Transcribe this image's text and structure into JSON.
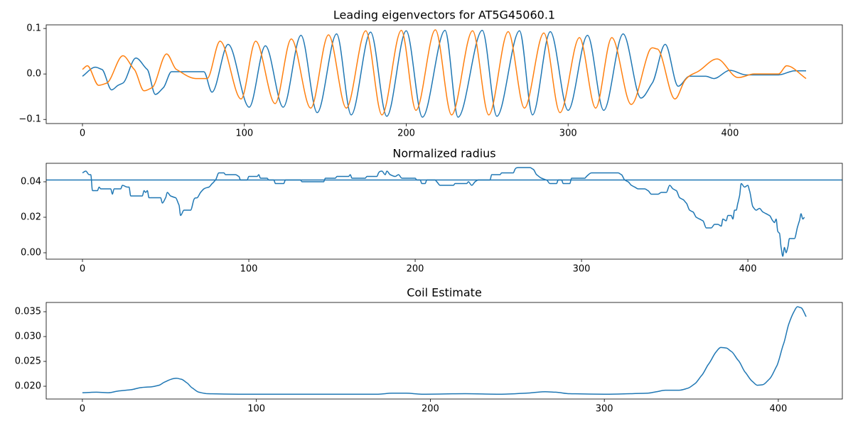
{
  "chart_data": [
    {
      "type": "line",
      "title": "Leading eigenvectors for AT5G45060.1",
      "xlim": [
        -22.4,
        469.4
      ],
      "ylim": [
        -0.109,
        0.108
      ],
      "xticks": [
        0,
        100,
        200,
        300,
        400
      ],
      "yticks": [
        {
          "value": -0.1,
          "label": "−0.1"
        },
        {
          "value": 0,
          "label": "0.0"
        },
        0.1
      ],
      "series": [
        {
          "color": "#1f77b4",
          "x": [
            0,
            8,
            12,
            18,
            22,
            25,
            33,
            40,
            45,
            50,
            55,
            75,
            80,
            90,
            103,
            113,
            124,
            135,
            145,
            157,
            166,
            178,
            188,
            200,
            210,
            224,
            232,
            247,
            256,
            270,
            278,
            289,
            300,
            312,
            322,
            334,
            345,
            352,
            360,
            368,
            375,
            385,
            390,
            400,
            410,
            430,
            440,
            447
          ],
          "values": [
            -0.005,
            0.015,
            0.01,
            -0.035,
            -0.025,
            -0.02,
            0.035,
            0.01,
            -0.045,
            -0.03,
            0.005,
            0.005,
            -0.04,
            0.065,
            -0.073,
            0.062,
            -0.073,
            0.085,
            -0.085,
            0.088,
            -0.09,
            0.092,
            -0.093,
            0.095,
            -0.095,
            0.096,
            -0.095,
            0.096,
            -0.093,
            0.095,
            -0.09,
            0.093,
            -0.08,
            0.085,
            -0.08,
            0.088,
            -0.053,
            -0.02,
            0.065,
            -0.027,
            -0.005,
            -0.005,
            -0.01,
            0.008,
            -0.002,
            -0.002,
            0.007,
            0.007
          ]
        },
        {
          "color": "#ff7f0e",
          "x": [
            0,
            3,
            10,
            15,
            25,
            32,
            38,
            43,
            52,
            58,
            70,
            77,
            85,
            98,
            107,
            119,
            129,
            141,
            152,
            163,
            175,
            185,
            197,
            206,
            218,
            228,
            241,
            251,
            263,
            273,
            285,
            295,
            307,
            317,
            327,
            339,
            350,
            355,
            366,
            372,
            380,
            392,
            405,
            415,
            430,
            435,
            447
          ],
          "values": [
            0.01,
            0.018,
            -0.025,
            -0.02,
            0.04,
            0.01,
            -0.037,
            -0.03,
            0.044,
            0.01,
            -0.01,
            -0.01,
            0.072,
            -0.055,
            0.072,
            -0.065,
            0.077,
            -0.075,
            0.086,
            -0.075,
            0.095,
            -0.09,
            0.096,
            -0.08,
            0.097,
            -0.09,
            0.095,
            -0.09,
            0.093,
            -0.075,
            0.09,
            -0.085,
            0.08,
            -0.075,
            0.08,
            -0.067,
            0.05,
            0.055,
            -0.055,
            -0.015,
            0.005,
            0.033,
            -0.008,
            0.0,
            0.0,
            0.018,
            -0.01
          ]
        }
      ]
    },
    {
      "type": "line",
      "title": "Normalized radius",
      "xlim": [
        -21.8,
        456.8
      ],
      "ylim": [
        -0.0036,
        0.0504
      ],
      "xticks": [
        0,
        100,
        200,
        300,
        400
      ],
      "yticks": [
        {
          "value": 0,
          "label": "0.00"
        },
        {
          "value": 0.02,
          "label": "0.02"
        },
        {
          "value": 0.04,
          "label": "0.04"
        }
      ],
      "axhline": 0.041,
      "series": [
        {
          "color": "#1f77b4",
          "x": [
            0,
            2,
            4,
            5,
            6,
            9,
            10,
            11,
            17,
            18,
            19,
            23,
            24,
            27,
            28,
            29,
            36,
            37,
            38,
            39,
            40,
            47,
            48,
            50,
            51,
            53,
            56,
            58,
            59,
            61,
            65,
            67,
            69,
            71,
            73,
            76,
            78,
            80,
            82,
            85,
            86,
            92,
            94,
            95,
            99,
            100,
            105,
            106,
            107,
            111,
            112,
            115,
            116,
            121,
            122,
            131,
            132,
            145,
            146,
            152,
            153,
            160,
            161,
            162,
            170,
            171,
            177,
            178,
            180,
            182,
            183,
            185,
            188,
            190,
            192,
            200,
            201,
            203,
            204,
            206,
            207,
            212,
            213,
            215,
            223,
            224,
            231,
            232,
            234,
            236,
            238,
            245,
            246,
            251,
            252,
            259,
            260,
            262,
            269,
            271,
            273,
            276,
            279,
            281,
            285,
            286,
            288,
            289,
            293,
            294,
            302,
            303,
            306,
            322,
            324,
            326,
            328,
            330,
            332,
            334,
            338,
            340,
            342,
            346,
            348,
            351,
            353,
            355,
            357,
            359,
            361,
            363,
            365,
            367,
            369,
            371,
            373,
            375,
            378,
            380,
            382,
            384,
            385,
            387,
            388,
            390,
            391,
            392,
            393,
            394,
            395,
            396,
            398,
            400,
            401,
            403,
            405,
            407,
            409,
            411,
            413,
            415,
            416,
            417,
            418,
            419,
            420,
            421,
            422,
            423,
            424,
            425,
            428,
            430,
            431,
            432,
            433,
            434
          ],
          "values": [
            0.045,
            0.046,
            0.044,
            0.044,
            0.035,
            0.035,
            0.037,
            0.036,
            0.036,
            0.033,
            0.036,
            0.036,
            0.038,
            0.037,
            0.037,
            0.032,
            0.032,
            0.035,
            0.034,
            0.035,
            0.031,
            0.031,
            0.028,
            0.031,
            0.034,
            0.032,
            0.031,
            0.027,
            0.021,
            0.024,
            0.024,
            0.03,
            0.031,
            0.034,
            0.036,
            0.037,
            0.039,
            0.041,
            0.045,
            0.045,
            0.044,
            0.044,
            0.043,
            0.041,
            0.041,
            0.043,
            0.043,
            0.044,
            0.042,
            0.042,
            0.041,
            0.041,
            0.039,
            0.039,
            0.041,
            0.041,
            0.04,
            0.04,
            0.042,
            0.042,
            0.043,
            0.043,
            0.044,
            0.042,
            0.042,
            0.043,
            0.043,
            0.045,
            0.046,
            0.044,
            0.046,
            0.044,
            0.043,
            0.044,
            0.042,
            0.042,
            0.041,
            0.041,
            0.039,
            0.039,
            0.041,
            0.041,
            0.04,
            0.038,
            0.038,
            0.039,
            0.039,
            0.04,
            0.038,
            0.04,
            0.041,
            0.041,
            0.044,
            0.044,
            0.045,
            0.045,
            0.047,
            0.048,
            0.048,
            0.047,
            0.044,
            0.042,
            0.041,
            0.039,
            0.039,
            0.041,
            0.041,
            0.039,
            0.039,
            0.042,
            0.042,
            0.043,
            0.045,
            0.045,
            0.044,
            0.041,
            0.04,
            0.038,
            0.037,
            0.036,
            0.036,
            0.035,
            0.033,
            0.033,
            0.034,
            0.034,
            0.038,
            0.036,
            0.035,
            0.031,
            0.03,
            0.028,
            0.024,
            0.023,
            0.02,
            0.019,
            0.018,
            0.014,
            0.014,
            0.016,
            0.016,
            0.015,
            0.019,
            0.018,
            0.021,
            0.021,
            0.019,
            0.024,
            0.024,
            0.028,
            0.032,
            0.039,
            0.037,
            0.038,
            0.035,
            0.026,
            0.024,
            0.025,
            0.023,
            0.022,
            0.021,
            0.018,
            0.017,
            0.019,
            0.012,
            0.011,
            0.003,
            -0.002,
            0.003,
            0.0,
            0.003,
            0.008,
            0.008,
            0.015,
            0.018,
            0.022,
            0.019,
            0.02
          ]
        }
      ]
    },
    {
      "type": "line",
      "title": "Coil Estimate",
      "xlim": [
        -20.8,
        436.8
      ],
      "ylim": [
        0.01743,
        0.03686
      ],
      "xticks": [
        0,
        100,
        200,
        300,
        400
      ],
      "yticks": [
        {
          "value": 0.02,
          "label": "0.020"
        },
        {
          "value": 0.025,
          "label": "0.025"
        },
        {
          "value": 0.03,
          "label": "0.030"
        },
        {
          "value": 0.035,
          "label": "0.035"
        }
      ],
      "series": [
        {
          "color": "#1f77b4",
          "x": [
            0,
            8,
            15,
            20,
            28,
            33,
            40,
            44,
            47,
            51,
            54,
            57,
            60,
            63,
            67,
            72,
            90,
            170,
            178,
            186,
            195,
            220,
            240,
            255,
            266,
            272,
            280,
            300,
            315,
            325,
            330,
            335,
            343,
            348,
            352,
            356,
            360,
            364,
            367,
            370,
            373,
            377,
            381,
            385,
            388,
            391,
            395,
            399,
            403,
            406,
            409,
            411,
            413,
            416
          ],
          "values": [
            0.0187,
            0.0188,
            0.0187,
            0.019,
            0.0193,
            0.0197,
            0.0199,
            0.0202,
            0.0208,
            0.0214,
            0.0216,
            0.0214,
            0.0207,
            0.0197,
            0.0188,
            0.0185,
            0.0184,
            0.0184,
            0.0186,
            0.0186,
            0.0184,
            0.0185,
            0.0184,
            0.0186,
            0.0189,
            0.0188,
            0.0185,
            0.0184,
            0.0185,
            0.0186,
            0.0189,
            0.0192,
            0.0192,
            0.0196,
            0.0205,
            0.0222,
            0.0245,
            0.0268,
            0.0278,
            0.0277,
            0.027,
            0.0252,
            0.0228,
            0.021,
            0.0202,
            0.0203,
            0.0215,
            0.024,
            0.0285,
            0.0325,
            0.035,
            0.036,
            0.0358,
            0.034
          ]
        }
      ]
    }
  ]
}
